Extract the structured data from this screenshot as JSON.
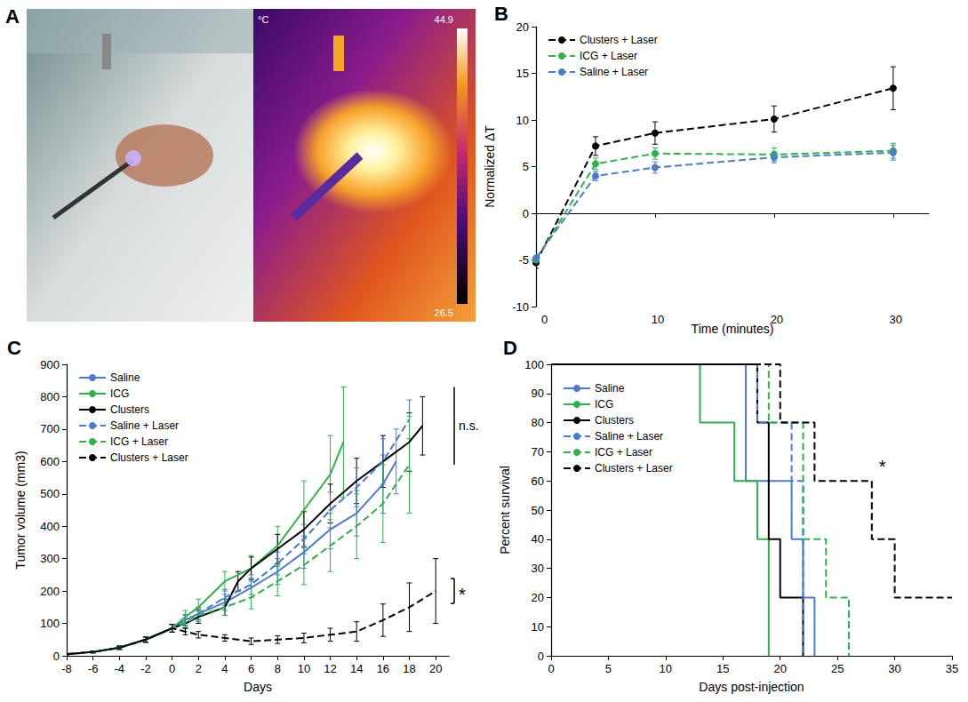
{
  "image_panel": {
    "panel": "A",
    "colorbar": {
      "unit": "°C",
      "max": 44.9,
      "min": 26.5
    }
  },
  "chart_data": [
    {
      "panel": "B",
      "type": "line",
      "xlabel": "Time (minutes)",
      "ylabel": "Normalized ΔT",
      "xlim": [
        0,
        33
      ],
      "xticks": [
        0,
        10,
        20,
        30
      ],
      "ylim": [
        -10,
        20
      ],
      "yticks": [
        -10,
        -5,
        0,
        5,
        10,
        15,
        20
      ],
      "grid": false,
      "legend": "upper left",
      "marker": "circle",
      "line_style": "dashed",
      "x": [
        0,
        5,
        10,
        20,
        30
      ],
      "series": [
        {
          "name": "Clusters + Laser",
          "color": "#000000",
          "values": [
            -5.3,
            7.2,
            8.6,
            10.1,
            13.4
          ],
          "errors": [
            0.6,
            1.0,
            1.2,
            1.4,
            2.3
          ]
        },
        {
          "name": "ICG + Laser",
          "color": "#2db34a",
          "values": [
            -5.0,
            5.3,
            6.4,
            6.3,
            6.7
          ],
          "errors": [
            0.4,
            0.6,
            0.6,
            0.7,
            0.8
          ]
        },
        {
          "name": "Saline + Laser",
          "color": "#4b7bd0",
          "values": [
            -4.8,
            4.0,
            4.9,
            6.0,
            6.5
          ],
          "errors": [
            0.3,
            0.5,
            0.6,
            0.6,
            0.8
          ]
        }
      ]
    },
    {
      "panel": "C",
      "type": "line",
      "xlabel": "Days",
      "ylabel": "Tumor volume (mm3)",
      "xlim": [
        -8,
        21
      ],
      "xticks": [
        -8,
        -6,
        -4,
        -2,
        0,
        2,
        4,
        6,
        8,
        10,
        12,
        14,
        16,
        18,
        20
      ],
      "ylim": [
        0,
        900
      ],
      "yticks": [
        0,
        100,
        200,
        300,
        400,
        500,
        600,
        700,
        800,
        900
      ],
      "grid": false,
      "legend": "upper left",
      "annotations": [
        {
          "text": "n.s."
        },
        {
          "text": "*"
        }
      ],
      "series": [
        {
          "name": "Saline",
          "color": "#4b7bd0",
          "line_style": "solid",
          "x": [
            -8,
            -6,
            -4,
            -2,
            0,
            1,
            2,
            4,
            6,
            8,
            10,
            12,
            14,
            16,
            17
          ],
          "values": [
            5,
            12,
            25,
            50,
            85,
            110,
            130,
            165,
            210,
            260,
            320,
            390,
            440,
            530,
            600
          ],
          "errors": [
            2,
            3,
            5,
            8,
            12,
            18,
            20,
            25,
            30,
            40,
            50,
            60,
            70,
            90,
            100
          ]
        },
        {
          "name": "ICG",
          "color": "#2db34a",
          "line_style": "solid",
          "x": [
            -8,
            -6,
            -4,
            -2,
            0,
            1,
            2,
            4,
            6,
            8,
            10,
            12,
            13
          ],
          "values": [
            5,
            12,
            25,
            50,
            85,
            120,
            150,
            230,
            270,
            340,
            450,
            560,
            660
          ],
          "errors": [
            2,
            3,
            5,
            8,
            12,
            20,
            25,
            30,
            40,
            60,
            90,
            120,
            170
          ]
        },
        {
          "name": "Clusters",
          "color": "#000000",
          "line_style": "solid",
          "x": [
            -8,
            -6,
            -4,
            -2,
            0,
            1,
            2,
            4,
            5,
            6,
            8,
            10,
            12,
            14,
            16,
            18,
            19
          ],
          "values": [
            5,
            12,
            25,
            50,
            85,
            100,
            120,
            150,
            230,
            270,
            330,
            390,
            470,
            540,
            600,
            660,
            710
          ],
          "errors": [
            2,
            3,
            5,
            8,
            12,
            15,
            20,
            25,
            30,
            35,
            45,
            55,
            60,
            70,
            80,
            90,
            90
          ]
        },
        {
          "name": "Saline + Laser",
          "color": "#4b7bd0",
          "line_style": "dashed",
          "x": [
            -8,
            -6,
            -4,
            -2,
            0,
            1,
            2,
            4,
            6,
            8,
            10,
            12,
            14,
            16,
            18
          ],
          "values": [
            5,
            12,
            25,
            50,
            85,
            110,
            130,
            180,
            220,
            285,
            360,
            450,
            520,
            600,
            730
          ],
          "errors": [
            2,
            3,
            5,
            8,
            12,
            15,
            18,
            25,
            30,
            35,
            45,
            55,
            60,
            70,
            60
          ]
        },
        {
          "name": "ICG + Laser",
          "color": "#2db34a",
          "line_style": "dashed",
          "x": [
            -8,
            -6,
            -4,
            -2,
            0,
            1,
            2,
            4,
            6,
            8,
            10,
            12,
            14,
            16,
            18
          ],
          "values": [
            5,
            12,
            25,
            50,
            85,
            100,
            125,
            150,
            180,
            230,
            280,
            340,
            400,
            470,
            590
          ],
          "errors": [
            2,
            3,
            5,
            8,
            12,
            15,
            20,
            25,
            35,
            45,
            60,
            80,
            100,
            120,
            150
          ]
        },
        {
          "name": "Clusters + Laser",
          "color": "#000000",
          "line_style": "dashed",
          "x": [
            -8,
            -6,
            -4,
            -2,
            0,
            1,
            2,
            4,
            6,
            8,
            10,
            12,
            14,
            16,
            18,
            20
          ],
          "values": [
            5,
            12,
            25,
            50,
            85,
            75,
            65,
            55,
            45,
            50,
            55,
            65,
            75,
            110,
            150,
            200
          ],
          "errors": [
            2,
            3,
            5,
            8,
            12,
            10,
            10,
            10,
            10,
            12,
            15,
            20,
            30,
            50,
            75,
            100
          ]
        }
      ]
    },
    {
      "panel": "D",
      "type": "step",
      "xlabel": "Days post-injection",
      "ylabel": "Percent survival",
      "xlim": [
        0,
        35
      ],
      "xticks": [
        0,
        5,
        10,
        15,
        20,
        25,
        30,
        35
      ],
      "ylim": [
        0,
        100
      ],
      "yticks": [
        0,
        10,
        20,
        30,
        40,
        50,
        60,
        70,
        80,
        90,
        100
      ],
      "grid": false,
      "legend": "upper left",
      "annotations": [
        {
          "text": "*"
        }
      ],
      "series": [
        {
          "name": "Saline",
          "color": "#4b7bd0",
          "line_style": "solid",
          "x": [
            0,
            17,
            21,
            22,
            23
          ],
          "values": [
            100,
            60,
            40,
            20,
            0
          ]
        },
        {
          "name": "ICG",
          "color": "#2db34a",
          "line_style": "solid",
          "x": [
            0,
            13,
            16,
            18,
            19
          ],
          "values": [
            100,
            80,
            60,
            40,
            0
          ]
        },
        {
          "name": "Clusters",
          "color": "#000000",
          "line_style": "solid",
          "x": [
            0,
            18,
            19,
            20,
            22
          ],
          "values": [
            100,
            80,
            40,
            20,
            0
          ]
        },
        {
          "name": "Saline + Laser",
          "color": "#4b7bd0",
          "line_style": "dashed",
          "x": [
            0,
            18,
            21,
            22
          ],
          "values": [
            100,
            80,
            60,
            0
          ]
        },
        {
          "name": "ICG + Laser",
          "color": "#2db34a",
          "line_style": "dashed",
          "x": [
            0,
            19,
            22,
            24,
            26
          ],
          "values": [
            100,
            80,
            40,
            20,
            0
          ]
        },
        {
          "name": "Clusters + Laser",
          "color": "#000000",
          "line_style": "dashed",
          "x": [
            0,
            20,
            23,
            28,
            30,
            35
          ],
          "values": [
            100,
            80,
            60,
            40,
            20,
            20
          ]
        }
      ]
    }
  ]
}
